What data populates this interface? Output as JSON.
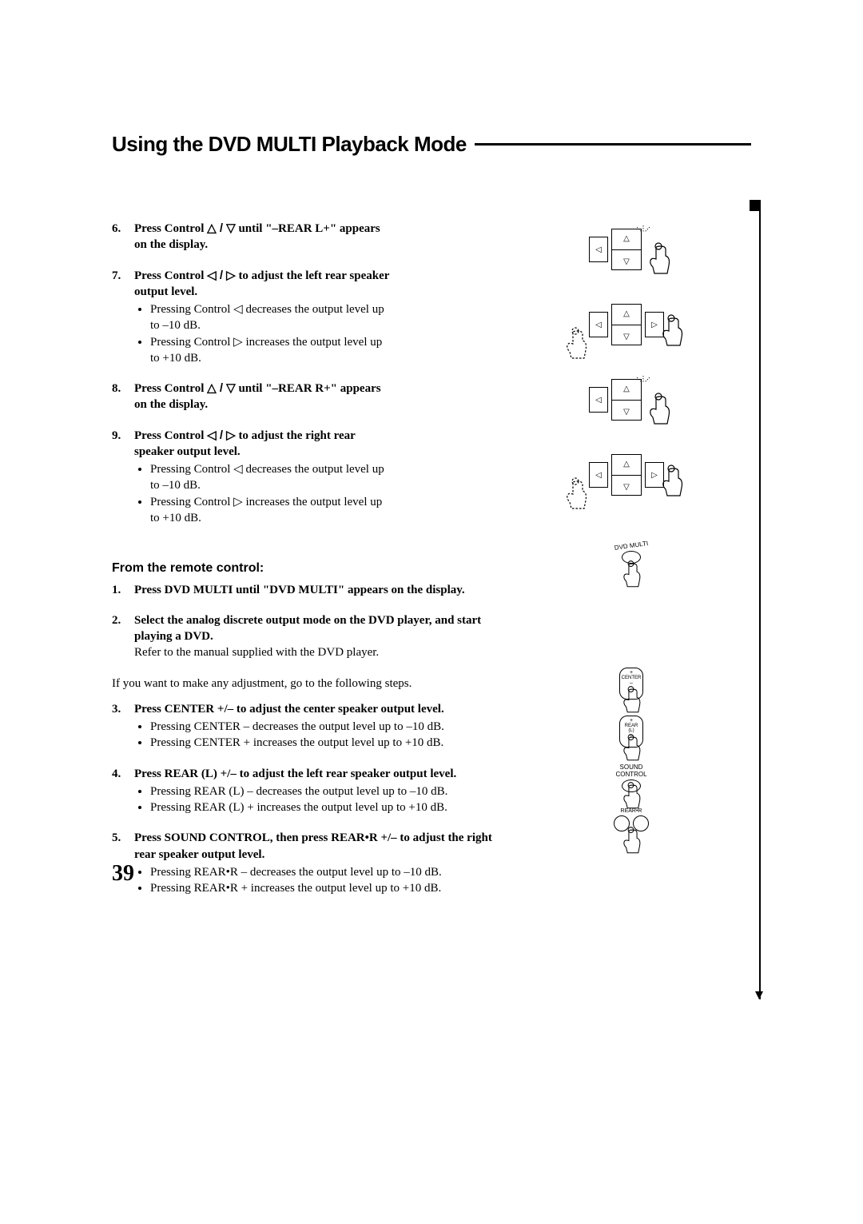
{
  "title": "Using the DVD MULTI Playback Mode",
  "pageNumber": "39",
  "symbols": {
    "triUp": "△",
    "triDown": "▽",
    "triLeft": "◁",
    "triRight": "▷"
  },
  "steps_panel": [
    {
      "num": "6",
      "title_pre": "Press Control ",
      "title_sym": "△ / ▽",
      "title_post": " until \"–REAR L+\" appears on the display.",
      "subs": []
    },
    {
      "num": "7",
      "title_pre": "Press Control ",
      "title_sym": "◁ / ▷",
      "title_post": " to adjust the left rear speaker output level.",
      "subs": [
        "Pressing Control ◁ decreases the output level up to –10 dB.",
        "Pressing Control ▷ increases the output level up to +10 dB."
      ]
    },
    {
      "num": "8",
      "title_pre": "Press Control ",
      "title_sym": "△ / ▽",
      "title_post": " until \"–REAR R+\" appears on the display.",
      "subs": []
    },
    {
      "num": "9",
      "title_pre": "Press Control ",
      "title_sym": "◁ / ▷",
      "title_post": " to adjust the right rear speaker output level.",
      "subs": [
        "Pressing Control ◁ decreases the output level up to –10 dB.",
        "Pressing Control ▷ increases the output level up to +10 dB."
      ]
    }
  ],
  "section_remote": "From the remote control:",
  "steps_remote": [
    {
      "num": "1",
      "title": "Press DVD MULTI until \"DVD MULTI\" appears on the display.",
      "refer": "",
      "subs": []
    },
    {
      "num": "2",
      "title": "Select the analog discrete output mode on the DVD player, and start playing a DVD.",
      "refer": "Refer to the manual supplied with the DVD player.",
      "subs": []
    }
  ],
  "remote_plain": "If you want to make any adjustment, go to the following steps.",
  "steps_remote2": [
    {
      "num": "3",
      "title": "Press CENTER +/– to adjust the center speaker output level.",
      "subs": [
        "Pressing CENTER – decreases the output level up to –10 dB.",
        "Pressing CENTER + increases the output level up to +10 dB."
      ]
    },
    {
      "num": "4",
      "title": "Press REAR (L) +/– to adjust the left rear speaker output level.",
      "subs": [
        "Pressing REAR (L) – decreases the output level up to –10 dB.",
        "Pressing REAR (L) + increases the output level up to +10 dB."
      ]
    },
    {
      "num": "5",
      "title": "Press SOUND CONTROL, then press REAR•R +/– to adjust the right rear speaker output level.",
      "subs": [
        "Pressing REAR•R – decreases the output level up to –10 dB.",
        "Pressing REAR•R + increases the output level up to +10 dB."
      ]
    }
  ],
  "diagrams": {
    "pads": [
      {
        "highlight": "up-down",
        "hand_on": "down-right",
        "dotted_left": false
      },
      {
        "highlight": "left-right",
        "hand_on": "right",
        "dotted_left": true
      },
      {
        "highlight": "up-down",
        "hand_on": "down-right",
        "dotted_left": false
      },
      {
        "highlight": "left-right",
        "hand_on": "right",
        "dotted_left": true
      }
    ],
    "remote_buttons": [
      {
        "label": "DVD MULTI",
        "style": "oval",
        "spacing": 130
      },
      {
        "label": "CENTER",
        "style": "rect-plus",
        "spacing": 0
      },
      {
        "label": "REAR (L)",
        "style": "rect-plus-small",
        "spacing": 0
      },
      {
        "label": "SOUND CONTROL",
        "style": "oval",
        "spacing": 0
      },
      {
        "label": "REAR•R",
        "style": "dual-oval",
        "spacing": 0
      }
    ]
  }
}
